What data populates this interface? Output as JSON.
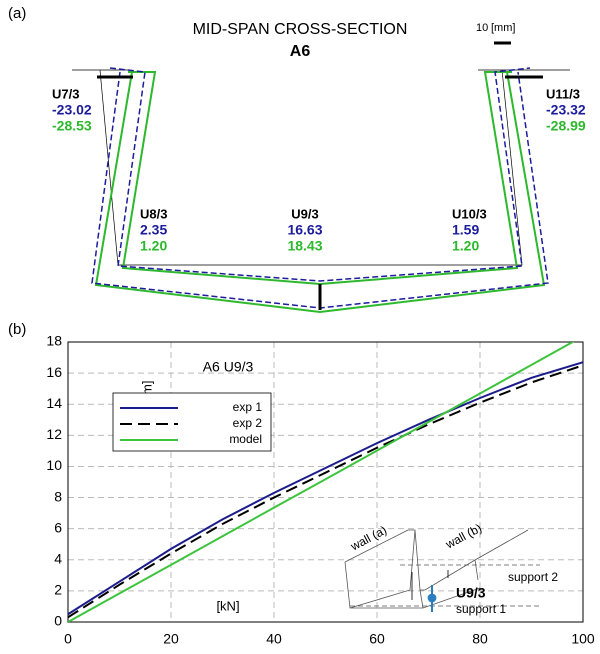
{
  "diagram": {
    "panel_label": "(a)",
    "title": "MID-SPAN CROSS-SECTION",
    "subtitle": "A6",
    "scale_value": "10",
    "scale_unit": "[mm]",
    "points": [
      {
        "label": "U7/3",
        "exp": "-23.02",
        "model": "-28.53"
      },
      {
        "label": "U8/3",
        "exp": "2.35",
        "model": "1.20"
      },
      {
        "label": "U9/3",
        "exp": "16.63",
        "model": "18.43"
      },
      {
        "label": "U10/3",
        "exp": "1.59",
        "model": "1.20"
      },
      {
        "label": "U11/3",
        "exp": "-23.32",
        "model": "-28.99"
      }
    ]
  },
  "chart_data": {
    "type": "line",
    "panel_label": "(b)",
    "title": "A6 U9/3",
    "ylabel": "[mm]",
    "xlabel": "[kN]",
    "x": [
      0,
      10,
      20,
      30,
      40,
      50,
      60,
      70,
      80,
      90,
      100
    ],
    "series": [
      {
        "name": "exp 1",
        "color": "#1c1c8c",
        "dash": "solid",
        "values": [
          0.5,
          2.6,
          4.7,
          6.6,
          8.3,
          9.9,
          11.5,
          13.0,
          14.4,
          15.7,
          16.7
        ]
      },
      {
        "name": "exp 2",
        "color": "#000000",
        "dash": "dashed",
        "values": [
          0.3,
          2.4,
          4.4,
          6.3,
          8.0,
          9.6,
          11.2,
          12.7,
          14.1,
          15.4,
          16.5
        ]
      },
      {
        "name": "model",
        "color": "#3cc43c",
        "dash": "solid",
        "values": [
          0,
          1.84,
          3.67,
          5.51,
          7.35,
          9.18,
          11.02,
          12.86,
          14.69,
          16.53,
          18.37
        ]
      }
    ],
    "xlim": [
      0,
      100
    ],
    "xticks": [
      0,
      20,
      40,
      60,
      80,
      100
    ],
    "ylim": [
      0,
      18
    ],
    "yticks": [
      0,
      2,
      4,
      6,
      8,
      10,
      12,
      14,
      16,
      18
    ],
    "grid": true,
    "legend": "upper left",
    "annotations": [
      "wall (a)",
      "wall (b)",
      "support 2",
      "U9/3",
      "support 1"
    ]
  }
}
